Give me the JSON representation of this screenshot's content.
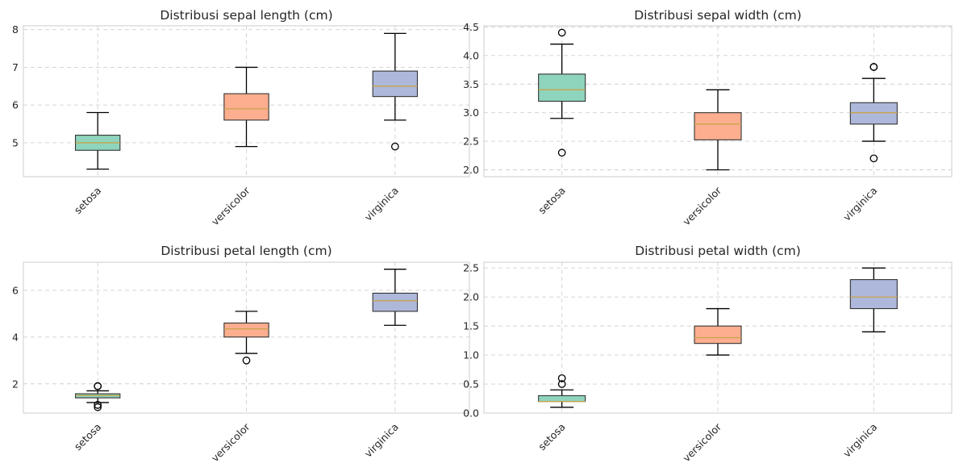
{
  "colors": {
    "setosa": "#8fd4bd",
    "versicolor": "#fdae8f",
    "virginica": "#adb8da",
    "median": "#c9a44c",
    "box_edge": "#333333"
  },
  "chart_data": [
    {
      "type": "box",
      "title": "Distribusi sepal length (cm)",
      "categories": [
        "setosa",
        "versicolor",
        "virginica"
      ],
      "ylim": [
        4.1,
        8.1
      ],
      "yticks": [
        5,
        6,
        7,
        8
      ],
      "tick_labels": [
        "5",
        "6",
        "7",
        "8"
      ],
      "grid": true,
      "boxes": [
        {
          "category": "setosa",
          "whislo": 4.3,
          "q1": 4.8,
          "med": 5.0,
          "q3": 5.2,
          "whishi": 5.8,
          "fliers": []
        },
        {
          "category": "versicolor",
          "whislo": 4.9,
          "q1": 5.6,
          "med": 5.9,
          "q3": 6.3,
          "whishi": 7.0,
          "fliers": []
        },
        {
          "category": "virginica",
          "whislo": 5.6,
          "q1": 6.225,
          "med": 6.5,
          "q3": 6.9,
          "whishi": 7.9,
          "fliers": [
            4.9
          ]
        }
      ]
    },
    {
      "type": "box",
      "title": "Distribusi sepal width (cm)",
      "categories": [
        "setosa",
        "versicolor",
        "virginica"
      ],
      "ylim": [
        1.88,
        4.52
      ],
      "yticks": [
        2.0,
        2.5,
        3.0,
        3.5,
        4.0,
        4.5
      ],
      "tick_labels": [
        "2.0",
        "2.5",
        "3.0",
        "3.5",
        "4.0",
        "4.5"
      ],
      "grid": true,
      "boxes": [
        {
          "category": "setosa",
          "whislo": 2.9,
          "q1": 3.2,
          "med": 3.4,
          "q3": 3.675,
          "whishi": 4.2,
          "fliers": [
            4.4,
            2.3
          ]
        },
        {
          "category": "versicolor",
          "whislo": 2.0,
          "q1": 2.525,
          "med": 2.8,
          "q3": 3.0,
          "whishi": 3.4,
          "fliers": []
        },
        {
          "category": "virginica",
          "whislo": 2.5,
          "q1": 2.8,
          "med": 3.0,
          "q3": 3.175,
          "whishi": 3.6,
          "fliers": [
            3.8,
            3.8,
            2.2
          ]
        }
      ]
    },
    {
      "type": "box",
      "title": "Distribusi petal length (cm)",
      "categories": [
        "setosa",
        "versicolor",
        "virginica"
      ],
      "ylim": [
        0.75,
        7.2
      ],
      "yticks": [
        2,
        4,
        6
      ],
      "tick_labels": [
        "2",
        "4",
        "6"
      ],
      "grid": true,
      "boxes": [
        {
          "category": "setosa",
          "whislo": 1.2,
          "q1": 1.4,
          "med": 1.5,
          "q3": 1.575,
          "whishi": 1.7,
          "fliers": [
            1.9,
            1.9,
            1.1,
            1.0
          ]
        },
        {
          "category": "versicolor",
          "whislo": 3.3,
          "q1": 4.0,
          "med": 4.35,
          "q3": 4.6,
          "whishi": 5.1,
          "fliers": [
            3.0
          ]
        },
        {
          "category": "virginica",
          "whislo": 4.5,
          "q1": 5.1,
          "med": 5.55,
          "q3": 5.875,
          "whishi": 6.9,
          "fliers": []
        }
      ]
    },
    {
      "type": "box",
      "title": "Distribusi petal width (cm)",
      "categories": [
        "setosa",
        "versicolor",
        "virginica"
      ],
      "ylim": [
        0.0,
        2.6
      ],
      "yticks": [
        0.0,
        0.5,
        1.0,
        1.5,
        2.0,
        2.5
      ],
      "tick_labels": [
        "0.0",
        "0.5",
        "1.0",
        "1.5",
        "2.0",
        "2.5"
      ],
      "grid": true,
      "boxes": [
        {
          "category": "setosa",
          "whislo": 0.1,
          "q1": 0.2,
          "med": 0.2,
          "q3": 0.3,
          "whishi": 0.4,
          "fliers": [
            0.5,
            0.6
          ]
        },
        {
          "category": "versicolor",
          "whislo": 1.0,
          "q1": 1.2,
          "med": 1.3,
          "q3": 1.5,
          "whishi": 1.8,
          "fliers": []
        },
        {
          "category": "virginica",
          "whislo": 1.4,
          "q1": 1.8,
          "med": 2.0,
          "q3": 2.3,
          "whishi": 2.5,
          "fliers": []
        }
      ]
    }
  ]
}
